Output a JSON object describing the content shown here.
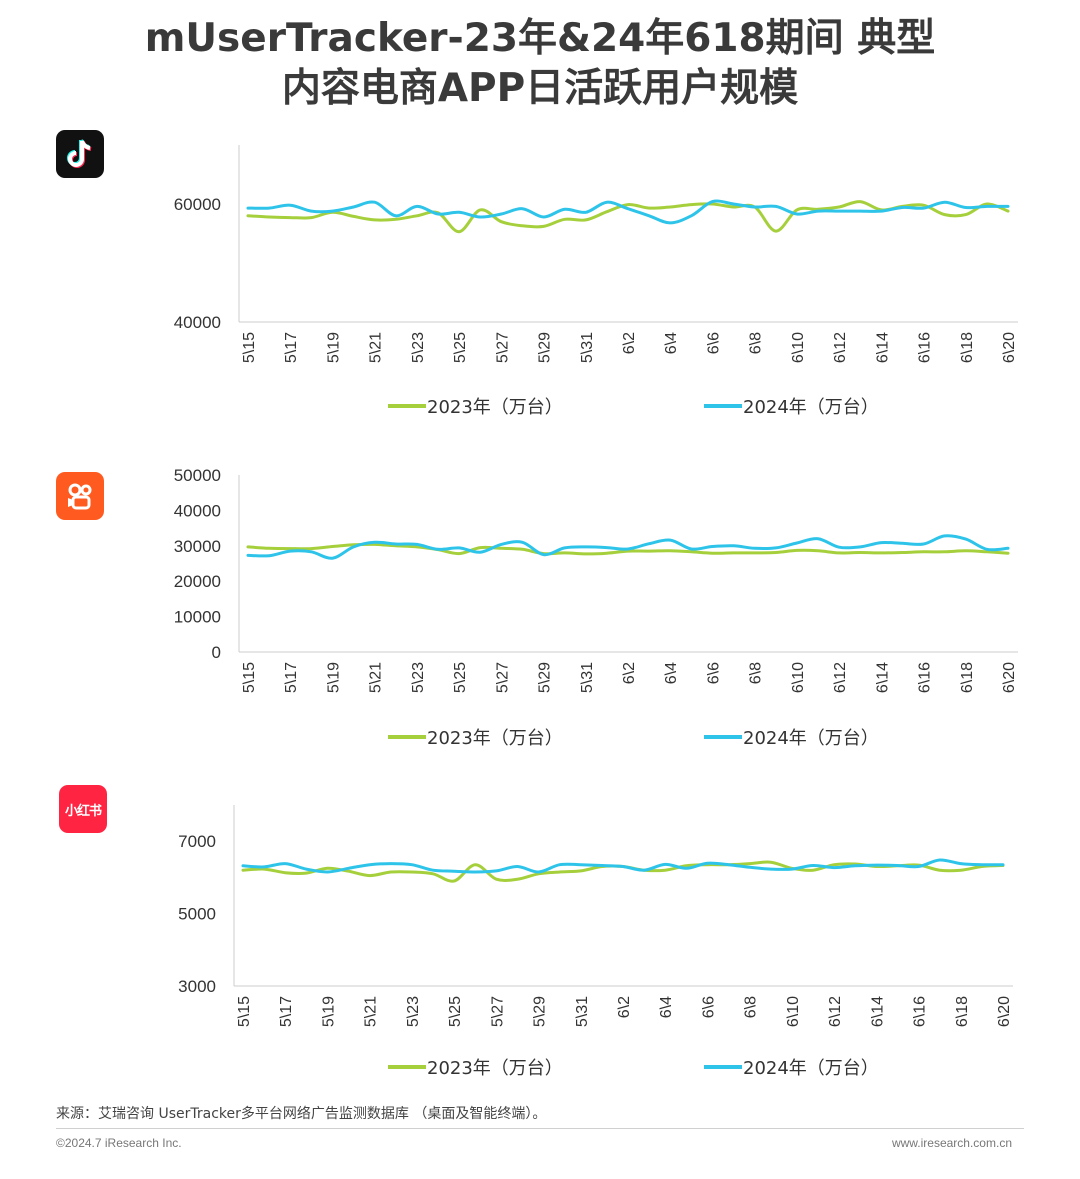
{
  "title_line1": "mUserTracker-23年&24年618期间 典型",
  "title_line2": "内容电商APP日活跃用户规模",
  "source": "来源：艾瑞咨询 UserTracker多平台网络广告监测数据库 （桌面及智能终端）。",
  "copyright": "©2024.7 iResearch Inc.",
  "site": "www.iresearch.com.cn",
  "apps": [
    {
      "icon": "tiktok-icon",
      "color": "#111111"
    },
    {
      "icon": "kuaishou-icon",
      "color": "#ff5a1f"
    },
    {
      "icon": "xiaohongshu-icon",
      "label": "小红书",
      "color": "#ff2442"
    }
  ],
  "colors": {
    "series_2023": "#a6cf3c",
    "series_2024": "#2ec4ea",
    "axis": "#cccccc"
  },
  "chart_data": [
    {
      "type": "line",
      "app": "抖音",
      "x": [
        "5\\15",
        "5\\16",
        "5\\17",
        "5\\18",
        "5\\19",
        "5\\20",
        "5\\21",
        "5\\22",
        "5\\23",
        "5\\24",
        "5\\25",
        "5\\26",
        "5\\27",
        "5\\28",
        "5\\29",
        "5\\30",
        "5\\31",
        "6\\1",
        "6\\2",
        "6\\3",
        "6\\4",
        "6\\5",
        "6\\6",
        "6\\7",
        "6\\8",
        "6\\9",
        "6\\10",
        "6\\11",
        "6\\12",
        "6\\13",
        "6\\14",
        "6\\15",
        "6\\16",
        "6\\17",
        "6\\18",
        "6\\19",
        "6\\20"
      ],
      "x_tick_labels": [
        "5\\15",
        "5\\17",
        "5\\19",
        "5\\21",
        "5\\23",
        "5\\25",
        "5\\27",
        "5\\29",
        "5\\31",
        "6\\2",
        "6\\4",
        "6\\6",
        "6\\8",
        "6\\10",
        "6\\12",
        "6\\14",
        "6\\16",
        "6\\18",
        "6\\20"
      ],
      "y_ticks": [
        40000,
        60000
      ],
      "ylim": [
        40000,
        70000
      ],
      "series": [
        {
          "name": "2023年（万台）",
          "values": [
            58000,
            57800,
            57700,
            57700,
            58600,
            57900,
            57300,
            57400,
            58000,
            58500,
            55300,
            59000,
            57000,
            56300,
            56200,
            57400,
            57300,
            58700,
            59900,
            59300,
            59500,
            59900,
            60000,
            59500,
            59500,
            55400,
            59000,
            59100,
            59500,
            60400,
            59000,
            59600,
            59800,
            58200,
            58200,
            60000,
            58800
          ]
        },
        {
          "name": "2024年（万台）",
          "values": [
            59300,
            59300,
            59800,
            58800,
            58800,
            59500,
            60300,
            58000,
            59600,
            58300,
            58600,
            57800,
            58300,
            59200,
            57800,
            59100,
            58600,
            60300,
            59200,
            58000,
            56800,
            58000,
            60400,
            60000,
            59500,
            59600,
            58300,
            58800,
            58800,
            58800,
            58800,
            59400,
            59300,
            60300,
            59400,
            59600,
            59600
          ]
        }
      ],
      "legend_position": "bottom"
    },
    {
      "type": "line",
      "app": "快手",
      "x": [
        "5\\15",
        "5\\16",
        "5\\17",
        "5\\18",
        "5\\19",
        "5\\20",
        "5\\21",
        "5\\22",
        "5\\23",
        "5\\24",
        "5\\25",
        "5\\26",
        "5\\27",
        "5\\28",
        "5\\29",
        "5\\30",
        "5\\31",
        "6\\1",
        "6\\2",
        "6\\3",
        "6\\4",
        "6\\5",
        "6\\6",
        "6\\7",
        "6\\8",
        "6\\9",
        "6\\10",
        "6\\11",
        "6\\12",
        "6\\13",
        "6\\14",
        "6\\15",
        "6\\16",
        "6\\17",
        "6\\18",
        "6\\19",
        "6\\20"
      ],
      "x_tick_labels": [
        "5\\15",
        "5\\17",
        "5\\19",
        "5\\21",
        "5\\23",
        "5\\25",
        "5\\27",
        "5\\29",
        "5\\31",
        "6\\2",
        "6\\4",
        "6\\6",
        "6\\8",
        "6\\10",
        "6\\12",
        "6\\14",
        "6\\16",
        "6\\18",
        "6\\20"
      ],
      "y_ticks": [
        0,
        10000,
        20000,
        30000,
        40000,
        50000
      ],
      "ylim": [
        0,
        50000
      ],
      "series": [
        {
          "name": "2023年（万台）",
          "values": [
            29700,
            29300,
            29200,
            29200,
            29800,
            30300,
            30400,
            30000,
            29700,
            28900,
            27800,
            29500,
            29300,
            29000,
            27800,
            28000,
            27700,
            27900,
            28500,
            28500,
            28600,
            28300,
            27900,
            28000,
            28000,
            28100,
            28700,
            28600,
            28000,
            28100,
            28000,
            28100,
            28300,
            28300,
            28600,
            28300,
            27900
          ]
        },
        {
          "name": "2024年（万台）",
          "values": [
            27300,
            27200,
            28500,
            28300,
            26500,
            29700,
            31000,
            30500,
            30400,
            29000,
            29400,
            28200,
            30400,
            31000,
            27500,
            29400,
            29700,
            29500,
            29100,
            30600,
            31600,
            29100,
            29800,
            30000,
            29300,
            29400,
            30800,
            32000,
            29600,
            29700,
            30900,
            30700,
            30500,
            32800,
            31900,
            29000,
            29300
          ]
        }
      ],
      "legend_position": "bottom"
    },
    {
      "type": "line",
      "app": "小红书",
      "x": [
        "5\\15",
        "5\\16",
        "5\\17",
        "5\\18",
        "5\\19",
        "5\\20",
        "5\\21",
        "5\\22",
        "5\\23",
        "5\\24",
        "5\\25",
        "5\\26",
        "5\\27",
        "5\\28",
        "5\\29",
        "5\\30",
        "5\\31",
        "6\\1",
        "6\\2",
        "6\\3",
        "6\\4",
        "6\\5",
        "6\\6",
        "6\\7",
        "6\\8",
        "6\\9",
        "6\\10",
        "6\\11",
        "6\\12",
        "6\\13",
        "6\\14",
        "6\\15",
        "6\\16",
        "6\\17",
        "6\\18",
        "6\\19",
        "6\\20"
      ],
      "x_tick_labels": [
        "5\\15",
        "5\\17",
        "5\\19",
        "5\\21",
        "5\\23",
        "5\\25",
        "5\\27",
        "5\\29",
        "5\\31",
        "6\\2",
        "6\\4",
        "6\\6",
        "6\\8",
        "6\\10",
        "6\\12",
        "6\\14",
        "6\\16",
        "6\\18",
        "6\\20"
      ],
      "y_ticks": [
        3000,
        5000,
        7000
      ],
      "ylim": [
        3000,
        8000
      ],
      "series": [
        {
          "name": "2023年（万台）",
          "values": [
            6200,
            6230,
            6130,
            6120,
            6250,
            6170,
            6050,
            6150,
            6150,
            6100,
            5900,
            6350,
            5950,
            5950,
            6100,
            6150,
            6180,
            6300,
            6300,
            6200,
            6200,
            6320,
            6350,
            6350,
            6380,
            6420,
            6250,
            6200,
            6350,
            6370,
            6300,
            6320,
            6340,
            6200,
            6200,
            6300,
            6330
          ]
        },
        {
          "name": "2024年（万台）",
          "values": [
            6320,
            6290,
            6380,
            6230,
            6150,
            6250,
            6350,
            6380,
            6350,
            6200,
            6170,
            6150,
            6180,
            6300,
            6150,
            6350,
            6350,
            6330,
            6300,
            6200,
            6360,
            6250,
            6390,
            6350,
            6280,
            6230,
            6230,
            6330,
            6270,
            6320,
            6340,
            6330,
            6300,
            6480,
            6380,
            6350,
            6350
          ]
        }
      ],
      "legend_position": "bottom"
    }
  ]
}
